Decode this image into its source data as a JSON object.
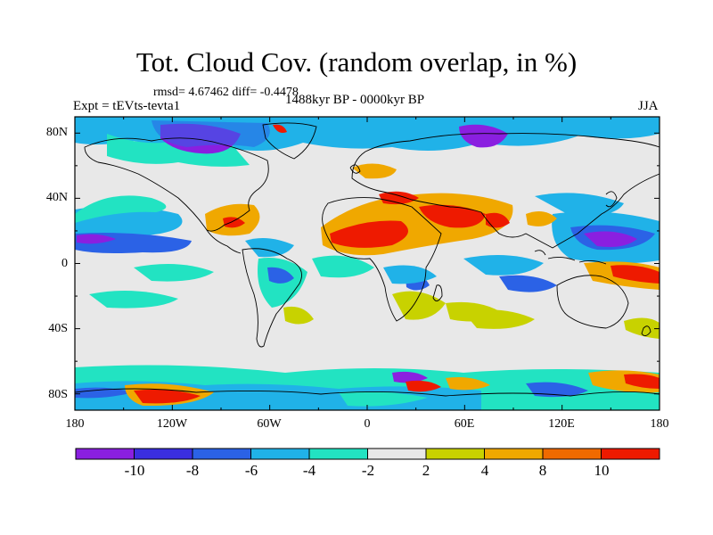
{
  "title": "Tot. Cloud Cov. (random overlap, in %)",
  "stats": "rmsd= 4.67462  diff= -0.4478",
  "experiment": "Expt = tEVts-tevta1",
  "period": "1488kyr BP - 0000kyr BP",
  "season": "JJA",
  "lat_labels": [
    "80N",
    "40N",
    "0",
    "40S",
    "80S"
  ],
  "lon_labels": [
    "180",
    "120W",
    "60W",
    "0",
    "60E",
    "120E",
    "180"
  ],
  "colorbar": {
    "labels": [
      "-10",
      "-8",
      "-6",
      "-4",
      "-2",
      "2",
      "4",
      "8",
      "10"
    ],
    "colors": [
      "#8a1fe0",
      "#3a2ee0",
      "#2b62e6",
      "#20b2e8",
      "#22e3c2",
      "#e8e8e8",
      "#c8d200",
      "#f0a800",
      "#f06a00",
      "#ee1a00"
    ]
  },
  "colors": {
    "land_outline": "#000000",
    "ocean_bg": "#e8e8e8"
  }
}
